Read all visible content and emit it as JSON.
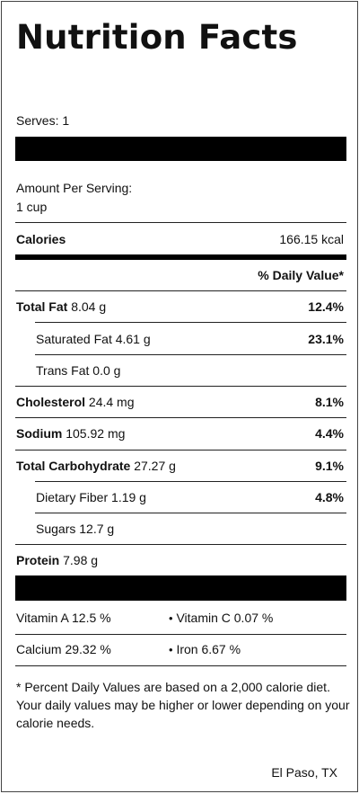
{
  "title": "Nutrition Facts",
  "serves": "Serves: 1",
  "amount_per_serving_label": "Amount Per Serving:",
  "serving_size": "1 cup",
  "calories": {
    "label": "Calories",
    "value": "166.15 kcal"
  },
  "daily_value_header": "% Daily Value*",
  "nutrients": {
    "total_fat": {
      "label": "Total Fat",
      "amount": "8.04 g",
      "dv": "12.4%"
    },
    "saturated_fat": {
      "label": "Saturated Fat",
      "amount": "4.61 g",
      "dv": "23.1%"
    },
    "trans_fat": {
      "label": "Trans Fat",
      "amount": "0.0 g"
    },
    "cholesterol": {
      "label": "Cholesterol",
      "amount": "24.4 mg",
      "dv": "8.1%"
    },
    "sodium": {
      "label": "Sodium",
      "amount": "105.92 mg",
      "dv": "4.4%"
    },
    "total_carbohydrate": {
      "label": "Total Carbohydrate",
      "amount": "27.27 g",
      "dv": "9.1%"
    },
    "dietary_fiber": {
      "label": "Dietary Fiber",
      "amount": "1.19 g",
      "dv": "4.8%"
    },
    "sugars": {
      "label": "Sugars",
      "amount": "12.7 g"
    },
    "protein": {
      "label": "Protein",
      "amount": "7.98 g"
    }
  },
  "vitamins": {
    "vitamin_a": "Vitamin A 12.5 %",
    "vitamin_c": "Vitamin C 0.07 %",
    "calcium": "Calcium 29.32 %",
    "iron": "Iron 6.67 %",
    "bullet": "•"
  },
  "footnote": "* Percent Daily Values are based on a 2,000 calorie diet. Your daily values may be higher or lower depending on your calorie needs.",
  "location": "El Paso, TX"
}
